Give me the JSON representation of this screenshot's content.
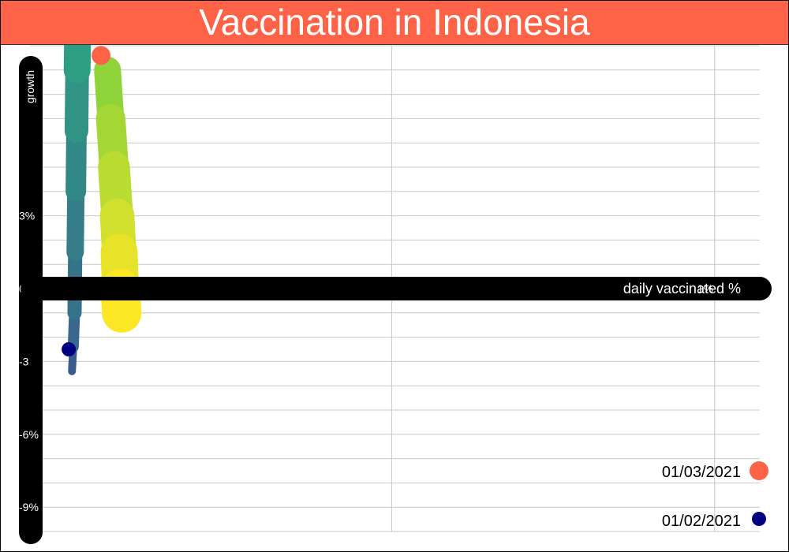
{
  "colors": {
    "title_bg": "#FF6347",
    "axis": "#000000",
    "grid": "#C8C8C8",
    "start_marker": "#000080",
    "end_marker": "#FF6347",
    "trail_left_start": "#3B5C8F",
    "trail_left_end": "#2E9E82",
    "trail_right_start": "#8ED33A",
    "trail_right_end": "#FDE725"
  },
  "chart_data": {
    "type": "scatter",
    "title": "Vaccination in Indonesia",
    "xlabel": "daily vaccinated %",
    "ylabel": "growth",
    "x_ticks": [
      "1%"
    ],
    "y_ticks": [
      {
        "value": 3,
        "label": "3%"
      },
      {
        "value": 0,
        "label": "0%"
      },
      {
        "value": -3,
        "label": "-3"
      },
      {
        "value": -6,
        "label": "-6%"
      },
      {
        "value": -9,
        "label": "-9%"
      }
    ],
    "xlim": [
      -0.06,
      1.07
    ],
    "ylim": [
      -10,
      10
    ],
    "grid": true,
    "trail_left": [
      {
        "x": 0.005,
        "y": -3.4
      },
      {
        "x": 0.007,
        "y": -2.4
      },
      {
        "x": 0.009,
        "y": -1.0
      },
      {
        "x": 0.01,
        "y": 1.5
      },
      {
        "x": 0.011,
        "y": 4.0
      },
      {
        "x": 0.012,
        "y": 6.5
      },
      {
        "x": 0.013,
        "y": 9.0
      },
      {
        "x": 0.014,
        "y": 11.0
      }
    ],
    "trail_right": [
      {
        "x": 0.06,
        "y": 9.0
      },
      {
        "x": 0.065,
        "y": 7.0
      },
      {
        "x": 0.07,
        "y": 5.0
      },
      {
        "x": 0.075,
        "y": 3.0
      },
      {
        "x": 0.078,
        "y": 1.5
      },
      {
        "x": 0.08,
        "y": 0.0
      },
      {
        "x": 0.082,
        "y": -1.0
      }
    ],
    "start_point": {
      "x": 0.0,
      "y": -2.5,
      "label": "01/02/2021"
    },
    "end_point": {
      "x": 0.05,
      "y": 9.6,
      "label": "01/03/2021"
    }
  }
}
